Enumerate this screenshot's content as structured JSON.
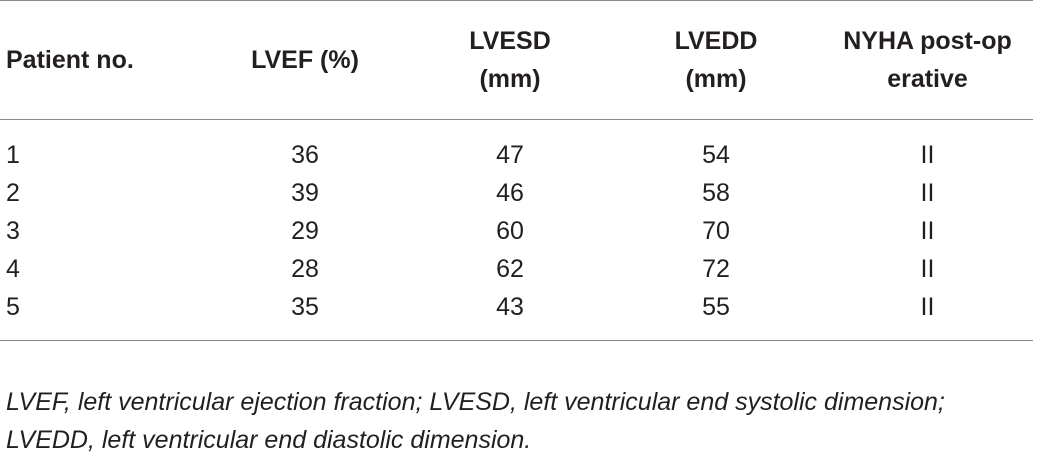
{
  "table": {
    "headers": [
      "Patient no.",
      "LVEF (%)",
      "LVESD (mm)",
      "LVEDD (mm)",
      "NYHA post-operative"
    ],
    "rows": [
      [
        "1",
        "36",
        "47",
        "54",
        "II"
      ],
      [
        "2",
        "39",
        "46",
        "58",
        "II"
      ],
      [
        "3",
        "29",
        "60",
        "70",
        "II"
      ],
      [
        "4",
        "28",
        "62",
        "72",
        "II"
      ],
      [
        "5",
        "35",
        "43",
        "55",
        "II"
      ]
    ]
  },
  "footnote": "LVEF, left ventricular ejection fraction; LVESD, left ventricular end systolic dimension; LVEDD, left ventricular end diastolic dimension."
}
